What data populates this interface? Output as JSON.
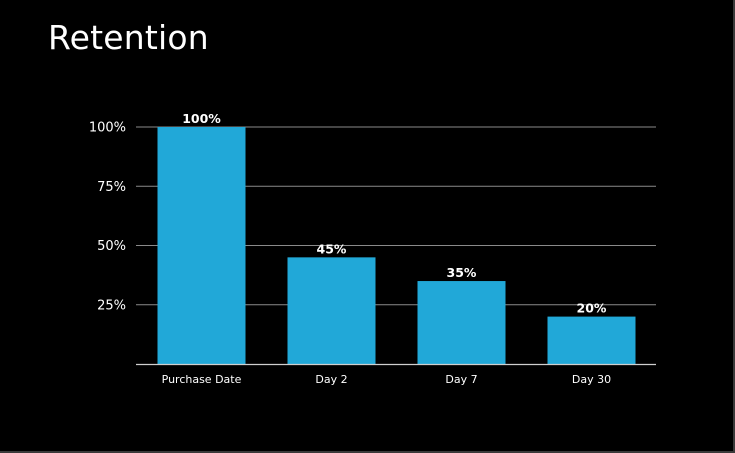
{
  "header": {
    "title": "Retention"
  },
  "chart_data": {
    "type": "bar",
    "title": "Retention",
    "categories": [
      "Purchase Date",
      "Day 2",
      "Day 7",
      "Day 30"
    ],
    "values": [
      100,
      45,
      35,
      20
    ],
    "data_labels": [
      "100%",
      "45%",
      "35%",
      "20%"
    ],
    "y_ticks": [
      {
        "value": 25,
        "label": "25%"
      },
      {
        "value": 50,
        "label": "50%"
      },
      {
        "value": 75,
        "label": "75%"
      },
      {
        "value": 100,
        "label": "100%"
      }
    ],
    "ylim": [
      0,
      100
    ],
    "grid": true,
    "legend": "none",
    "colors": {
      "bar": "#21A8D8",
      "grid": "#8a8a8a",
      "axis": "#cfcfcf",
      "background": "#000000",
      "text": "#ffffff"
    }
  }
}
